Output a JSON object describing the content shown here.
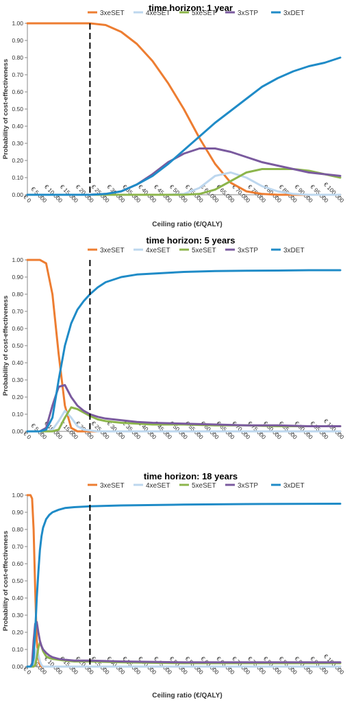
{
  "colors": {
    "3xeSET": "#ED7D31",
    "4xeSET": "#BDD7EE",
    "5xeSET": "#8CB54B",
    "3xSTP": "#7A5A9E",
    "3xDET": "#1F8BC7"
  },
  "chart_data": [
    {
      "type": "line",
      "title": "time horizon: 1 year",
      "xlabel": "Ceiling ratio (€/QALY)",
      "ylabel": "Probability of cost-effectiveness",
      "xlim": [
        0,
        100000
      ],
      "ylim": [
        0,
        1
      ],
      "x_tick_labels": [
        "€ 0",
        "€ 5.000",
        "€ 10.000",
        "€ 15.000",
        "€ 20.000",
        "€ 25.000",
        "€ 30.000",
        "€ 35.000",
        "€ 40.000",
        "€ 45.000",
        "€ 50.000",
        "€ 55.000",
        "€ 60.000",
        "€ 65.000",
        "€ 70.000",
        "€ 75.000",
        "€ 80.000",
        "€ 85.000",
        "€ 90.000",
        "€ 95.000",
        "€ 100.000"
      ],
      "y_tick_labels": [
        "0.00",
        "0.10",
        "0.20",
        "0.30",
        "0.40",
        "0.50",
        "0.60",
        "0.70",
        "0.80",
        "0.90",
        "1.00"
      ],
      "legend_position": "top",
      "threshold_line": 20000,
      "x": [
        0,
        5000,
        10000,
        15000,
        20000,
        25000,
        30000,
        35000,
        40000,
        45000,
        50000,
        55000,
        60000,
        65000,
        70000,
        75000,
        80000,
        85000,
        90000,
        95000,
        100000
      ],
      "series": [
        {
          "name": "3xeSET",
          "values": [
            1,
            1,
            1,
            1,
            1,
            0.99,
            0.95,
            0.88,
            0.78,
            0.65,
            0.5,
            0.33,
            0.18,
            0.07,
            0.02,
            0.005,
            0,
            0,
            0,
            0,
            0
          ]
        },
        {
          "name": "4xeSET",
          "values": [
            0,
            0,
            0,
            0,
            0,
            0,
            0,
            0,
            0,
            0,
            0.005,
            0.04,
            0.11,
            0.13,
            0.1,
            0.05,
            0.02,
            0.005,
            0,
            0,
            0
          ]
        },
        {
          "name": "5xeSET",
          "values": [
            0,
            0,
            0,
            0,
            0,
            0,
            0,
            0,
            0,
            0,
            0,
            0.005,
            0.03,
            0.08,
            0.13,
            0.15,
            0.15,
            0.15,
            0.14,
            0.12,
            0.1
          ]
        },
        {
          "name": "3xSTP",
          "values": [
            0,
            0,
            0,
            0,
            0,
            0.005,
            0.02,
            0.06,
            0.12,
            0.19,
            0.24,
            0.27,
            0.27,
            0.25,
            0.22,
            0.19,
            0.17,
            0.15,
            0.13,
            0.12,
            0.11
          ]
        },
        {
          "name": "3xDET",
          "values": [
            0,
            0,
            0,
            0,
            0,
            0.005,
            0.02,
            0.06,
            0.11,
            0.18,
            0.26,
            0.34,
            0.42,
            0.49,
            0.56,
            0.63,
            0.68,
            0.72,
            0.75,
            0.77,
            0.8
          ]
        }
      ]
    },
    {
      "type": "line",
      "title": "time horizon: 5 years",
      "xlabel": "",
      "ylabel": "Probability of cost-effectiveness",
      "xlim": [
        0,
        100000
      ],
      "ylim": [
        0,
        1
      ],
      "x_tick_labels": [
        "€ 0",
        "€ 5.000",
        "€ 10.000",
        "€ 15.000",
        "€ 20.000",
        "€ 25.000",
        "€ 30.000",
        "€ 35.000",
        "€ 40.000",
        "€ 45.000",
        "€ 50.000",
        "€ 55.000",
        "€ 60.000",
        "€ 65.000",
        "€ 70.000",
        "€ 75.000",
        "€ 80.000",
        "€ 85.000",
        "€ 90.000",
        "€ 95.000",
        "€ 100.000"
      ],
      "y_tick_labels": [
        "0.00",
        "0.10",
        "0.20",
        "0.30",
        "0.40",
        "0.50",
        "0.60",
        "0.70",
        "0.80",
        "0.90",
        "1.00"
      ],
      "legend_position": "top",
      "threshold_line": 20000,
      "x": [
        0,
        4000,
        6000,
        8000,
        10000,
        12000,
        14000,
        16000,
        18000,
        20000,
        22500,
        25000,
        30000,
        35000,
        40000,
        50000,
        60000,
        70000,
        80000,
        90000,
        100000
      ],
      "series": [
        {
          "name": "3xeSET",
          "values": [
            1,
            1,
            0.98,
            0.8,
            0.45,
            0.15,
            0.02,
            0,
            0,
            0,
            0,
            0,
            0,
            0,
            0,
            0,
            0,
            0,
            0,
            0,
            0
          ]
        },
        {
          "name": "4xeSET",
          "values": [
            0,
            0,
            0,
            0.01,
            0.06,
            0.12,
            0.08,
            0.03,
            0.01,
            0.005,
            0,
            0,
            0,
            0,
            0,
            0,
            0,
            0,
            0,
            0,
            0
          ]
        },
        {
          "name": "5xeSET",
          "values": [
            0,
            0,
            0,
            0,
            0.01,
            0.08,
            0.14,
            0.13,
            0.11,
            0.09,
            0.07,
            0.06,
            0.05,
            0.045,
            0.04,
            0.04,
            0.035,
            0.035,
            0.03,
            0.03,
            0.03
          ]
        },
        {
          "name": "3xSTP",
          "values": [
            0,
            0,
            0.02,
            0.15,
            0.26,
            0.27,
            0.2,
            0.15,
            0.12,
            0.1,
            0.085,
            0.075,
            0.065,
            0.055,
            0.05,
            0.045,
            0.04,
            0.035,
            0.035,
            0.03,
            0.03
          ]
        },
        {
          "name": "3xDET",
          "values": [
            0,
            0,
            0.01,
            0.08,
            0.3,
            0.5,
            0.63,
            0.71,
            0.76,
            0.8,
            0.84,
            0.87,
            0.9,
            0.915,
            0.92,
            0.93,
            0.935,
            0.937,
            0.938,
            0.94,
            0.94
          ]
        }
      ]
    },
    {
      "type": "line",
      "title": "time horizon: 18 years",
      "xlabel": "Ceiling ratio (€/QALY)",
      "ylabel": "Probability of cost-effectiveness",
      "xlim": [
        0,
        100000
      ],
      "ylim": [
        0,
        1
      ],
      "x_tick_labels": [
        "€ 0",
        "€ 5.000",
        "€ 10.000",
        "€ 15.000",
        "€ 20.000",
        "€ 25.000",
        "€ 30.000",
        "€ 35.000",
        "€ 40.000",
        "€ 45.000",
        "€ 50.000",
        "€ 55.000",
        "€ 60.000",
        "€ 65.000",
        "€ 70.000",
        "€ 75.000",
        "€ 80.000",
        "€ 85.000",
        "€ 90.000",
        "€ 95.000",
        "€ 100.000"
      ],
      "y_tick_labels": [
        "0.00",
        "0.10",
        "0.20",
        "0.30",
        "0.40",
        "0.50",
        "0.60",
        "0.70",
        "0.80",
        "0.90",
        "1.00"
      ],
      "legend_position": "top",
      "threshold_line": 20000,
      "x": [
        0,
        1000,
        1500,
        2000,
        2500,
        3000,
        3500,
        4000,
        4500,
        5000,
        6000,
        7000,
        8000,
        10000,
        12000,
        15000,
        20000,
        30000,
        50000,
        70000,
        100000
      ],
      "series": [
        {
          "name": "3xeSET",
          "values": [
            1,
            1,
            0.98,
            0.8,
            0.45,
            0.15,
            0.05,
            0.01,
            0,
            0,
            0,
            0,
            0,
            0,
            0,
            0,
            0,
            0,
            0,
            0,
            0
          ]
        },
        {
          "name": "4xeSET",
          "values": [
            0,
            0,
            0,
            0.01,
            0.06,
            0.1,
            0.07,
            0.03,
            0.01,
            0,
            0,
            0,
            0,
            0,
            0,
            0,
            0,
            0,
            0,
            0,
            0
          ]
        },
        {
          "name": "5xeSET",
          "values": [
            0,
            0,
            0,
            0,
            0.01,
            0.05,
            0.11,
            0.14,
            0.12,
            0.09,
            0.06,
            0.05,
            0.045,
            0.04,
            0.035,
            0.03,
            0.03,
            0.025,
            0.02,
            0.02,
            0.02
          ]
        },
        {
          "name": "3xSTP",
          "values": [
            0,
            0,
            0.02,
            0.15,
            0.25,
            0.26,
            0.2,
            0.15,
            0.12,
            0.1,
            0.08,
            0.065,
            0.055,
            0.045,
            0.04,
            0.035,
            0.035,
            0.03,
            0.025,
            0.025,
            0.025
          ]
        },
        {
          "name": "3xDET",
          "values": [
            0,
            0,
            0.01,
            0.05,
            0.2,
            0.4,
            0.55,
            0.68,
            0.76,
            0.81,
            0.86,
            0.885,
            0.9,
            0.915,
            0.925,
            0.93,
            0.935,
            0.94,
            0.945,
            0.948,
            0.95
          ]
        }
      ]
    }
  ]
}
